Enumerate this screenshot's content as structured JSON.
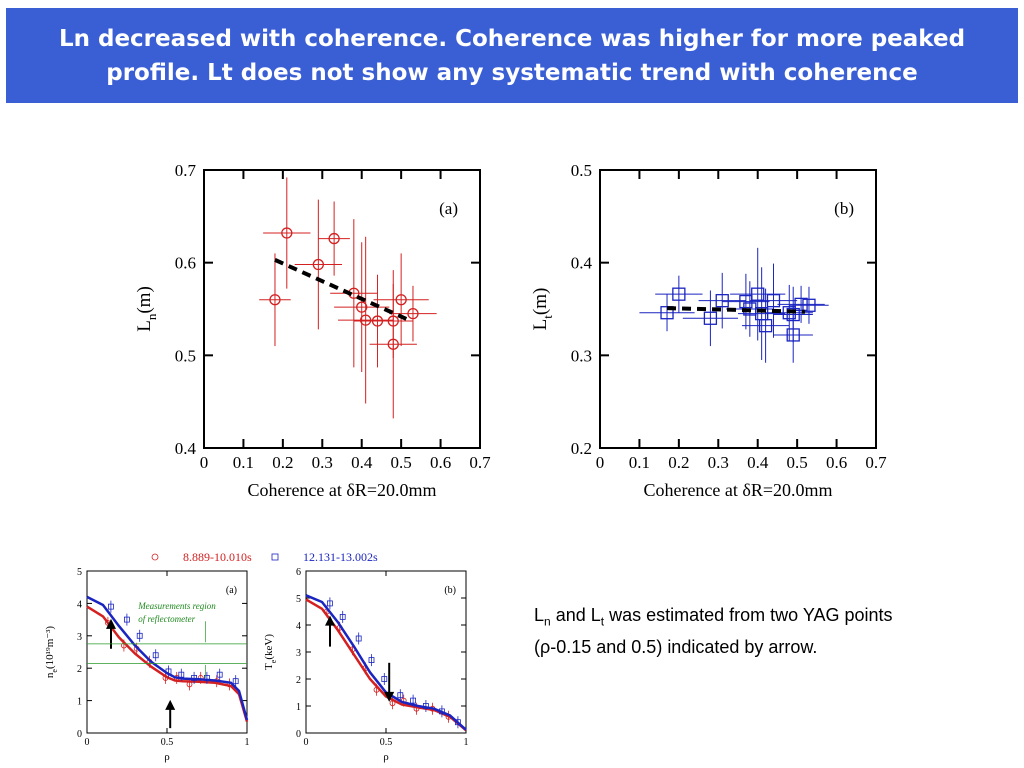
{
  "header": {
    "title": "Ln decreased with coherence. Coherence was higher for more peaked profile. Lt does not show any systematic trend with coherence"
  },
  "chart_data": [
    {
      "id": "ln",
      "type": "scatter",
      "panel_label": "(a)",
      "xlabel": "Coherence at δR=20.0mm",
      "ylabel_main": "L",
      "ylabel_sub": "n",
      "ylabel_unit": "(m)",
      "xlim": [
        0,
        0.7
      ],
      "ylim": [
        0.4,
        0.7
      ],
      "xticks": [
        "0",
        "0.1",
        "0.2",
        "0.3",
        "0.4",
        "0.5",
        "0.6",
        "0.7"
      ],
      "yticks": [
        "0.4",
        "0.5",
        "0.6",
        "0.7"
      ],
      "color": "#d42020",
      "marker": "circle",
      "points": [
        {
          "x": 0.18,
          "y": 0.56,
          "ex": 0.04,
          "ey": 0.05
        },
        {
          "x": 0.21,
          "y": 0.632,
          "ex": 0.06,
          "ey": 0.06
        },
        {
          "x": 0.29,
          "y": 0.598,
          "ex": 0.06,
          "ey": 0.07
        },
        {
          "x": 0.33,
          "y": 0.626,
          "ex": 0.04,
          "ey": 0.04
        },
        {
          "x": 0.38,
          "y": 0.567,
          "ex": 0.06,
          "ey": 0.08
        },
        {
          "x": 0.4,
          "y": 0.552,
          "ex": 0.07,
          "ey": 0.07
        },
        {
          "x": 0.41,
          "y": 0.538,
          "ex": 0.07,
          "ey": 0.09
        },
        {
          "x": 0.44,
          "y": 0.537,
          "ex": 0.06,
          "ey": 0.05
        },
        {
          "x": 0.48,
          "y": 0.537,
          "ex": 0.05,
          "ey": 0.04
        },
        {
          "x": 0.48,
          "y": 0.512,
          "ex": 0.06,
          "ey": 0.08
        },
        {
          "x": 0.5,
          "y": 0.56,
          "ex": 0.07,
          "ey": 0.05
        },
        {
          "x": 0.53,
          "y": 0.545,
          "ex": 0.06,
          "ey": 0.03
        }
      ],
      "fit": {
        "x": [
          0.18,
          0.52
        ],
        "y": [
          0.603,
          0.538
        ]
      }
    },
    {
      "id": "lt",
      "type": "scatter",
      "panel_label": "(b)",
      "xlabel": "Coherence at δR=20.0mm",
      "ylabel_main": "L",
      "ylabel_sub": "t",
      "ylabel_unit": "(m)",
      "xlim": [
        0,
        0.7
      ],
      "ylim": [
        0.2,
        0.5
      ],
      "xticks": [
        "0",
        "0.1",
        "0.2",
        "0.3",
        "0.4",
        "0.5",
        "0.6",
        "0.7"
      ],
      "yticks": [
        "0.2",
        "0.3",
        "0.4",
        "0.5"
      ],
      "color": "#1a24c0",
      "marker": "square",
      "points": [
        {
          "x": 0.17,
          "y": 0.346,
          "ex": 0.07,
          "ey": 0.02
        },
        {
          "x": 0.2,
          "y": 0.366,
          "ex": 0.06,
          "ey": 0.02
        },
        {
          "x": 0.28,
          "y": 0.34,
          "ex": 0.07,
          "ey": 0.03
        },
        {
          "x": 0.31,
          "y": 0.359,
          "ex": 0.06,
          "ey": 0.03
        },
        {
          "x": 0.37,
          "y": 0.358,
          "ex": 0.06,
          "ey": 0.03
        },
        {
          "x": 0.38,
          "y": 0.35,
          "ex": 0.06,
          "ey": 0.03
        },
        {
          "x": 0.4,
          "y": 0.366,
          "ex": 0.07,
          "ey": 0.05
        },
        {
          "x": 0.41,
          "y": 0.345,
          "ex": 0.06,
          "ey": 0.05
        },
        {
          "x": 0.42,
          "y": 0.332,
          "ex": 0.06,
          "ey": 0.04
        },
        {
          "x": 0.44,
          "y": 0.359,
          "ex": 0.06,
          "ey": 0.04
        },
        {
          "x": 0.48,
          "y": 0.346,
          "ex": 0.06,
          "ey": 0.03
        },
        {
          "x": 0.49,
          "y": 0.322,
          "ex": 0.05,
          "ey": 0.03
        },
        {
          "x": 0.49,
          "y": 0.344,
          "ex": 0.05,
          "ey": 0.03
        },
        {
          "x": 0.51,
          "y": 0.355,
          "ex": 0.06,
          "ey": 0.02
        },
        {
          "x": 0.53,
          "y": 0.354,
          "ex": 0.05,
          "ey": 0.02
        }
      ],
      "fit": {
        "x": [
          0.17,
          0.52
        ],
        "y": [
          0.351,
          0.347
        ]
      }
    },
    {
      "id": "ne",
      "type": "line",
      "panel_label": "(a)",
      "xlabel": "ρ",
      "ylabel_main": "n",
      "ylabel_sub": "e",
      "ylabel_unit": "(10¹⁹m⁻³)",
      "xlim": [
        0,
        1
      ],
      "ylim": [
        0,
        5
      ],
      "xticks": [
        "0",
        "0.5",
        "1"
      ],
      "yticks": [
        "0",
        "1",
        "2",
        "3",
        "4",
        "5"
      ],
      "annotation": [
        "Measurements region",
        "of reflectometer"
      ],
      "arrows_rho": [
        0.15,
        0.52
      ],
      "series": [
        {
          "name": "8.889-10.010s",
          "color": "#d42020",
          "marker": "circle",
          "x": [
            0,
            0.1,
            0.2,
            0.3,
            0.4,
            0.5,
            0.55,
            0.6,
            0.7,
            0.8,
            0.9,
            0.95,
            1.0
          ],
          "y": [
            3.9,
            3.6,
            2.95,
            2.45,
            2.05,
            1.72,
            1.62,
            1.6,
            1.58,
            1.55,
            1.45,
            1.2,
            0.35
          ],
          "px": [
            0.14,
            0.24,
            0.32,
            0.4,
            0.5,
            0.57,
            0.65,
            0.72,
            0.82,
            0.9
          ],
          "py": [
            3.4,
            2.7,
            2.6,
            2.2,
            1.7,
            1.7,
            1.5,
            1.7,
            1.6,
            1.5
          ]
        },
        {
          "name": "12.131-13.002s",
          "color": "#1a24c0",
          "marker": "square",
          "x": [
            0,
            0.1,
            0.2,
            0.3,
            0.4,
            0.5,
            0.55,
            0.6,
            0.7,
            0.8,
            0.9,
            0.95,
            1.0
          ],
          "y": [
            4.2,
            3.95,
            3.3,
            2.7,
            2.2,
            1.85,
            1.72,
            1.68,
            1.66,
            1.62,
            1.55,
            1.3,
            0.4
          ],
          "px": [
            0.14,
            0.24,
            0.32,
            0.42,
            0.5,
            0.58,
            0.66,
            0.74,
            0.82,
            0.92
          ],
          "py": [
            3.9,
            3.5,
            3.0,
            2.4,
            1.9,
            1.8,
            1.7,
            1.7,
            1.8,
            1.6
          ]
        }
      ]
    },
    {
      "id": "te",
      "type": "line",
      "panel_label": "(b)",
      "xlabel": "ρ",
      "ylabel_main": "T",
      "ylabel_sub": "e",
      "ylabel_unit": "(keV)",
      "xlim": [
        0,
        1
      ],
      "ylim": [
        0,
        6
      ],
      "xticks": [
        "0",
        "0.5",
        "1"
      ],
      "yticks": [
        "0",
        "1",
        "2",
        "3",
        "4",
        "5",
        "6"
      ],
      "arrows_rho": [
        0.15,
        0.52
      ],
      "series": [
        {
          "name": "8.889-10.010s",
          "color": "#d42020",
          "marker": "circle",
          "x": [
            0,
            0.1,
            0.2,
            0.3,
            0.4,
            0.5,
            0.6,
            0.7,
            0.8,
            0.9,
            1.0
          ],
          "y": [
            4.95,
            4.6,
            3.8,
            2.9,
            2.0,
            1.35,
            1.05,
            0.95,
            0.85,
            0.6,
            0.1
          ],
          "px": [
            0.14,
            0.22,
            0.3,
            0.38,
            0.45,
            0.55,
            0.62,
            0.7,
            0.8,
            0.9
          ],
          "py": [
            4.5,
            3.9,
            3.1,
            2.4,
            1.6,
            1.1,
            1.2,
            0.9,
            0.9,
            0.6
          ]
        },
        {
          "name": "12.131-13.002s",
          "color": "#1a24c0",
          "marker": "square",
          "x": [
            0,
            0.1,
            0.2,
            0.3,
            0.4,
            0.5,
            0.6,
            0.7,
            0.8,
            0.9,
            1.0
          ],
          "y": [
            5.1,
            4.85,
            4.1,
            3.2,
            2.25,
            1.5,
            1.15,
            1.0,
            0.9,
            0.65,
            0.12
          ],
          "px": [
            0.14,
            0.22,
            0.32,
            0.4,
            0.48,
            0.58,
            0.66,
            0.74,
            0.84,
            0.94
          ],
          "py": [
            4.8,
            4.3,
            3.5,
            2.7,
            2.0,
            1.4,
            1.2,
            1.0,
            0.8,
            0.4
          ]
        }
      ]
    }
  ],
  "note": {
    "text_1": "L",
    "sub_1": "n",
    "text_2": " and L",
    "sub_2": "t",
    "text_3": " was estimated from two YAG points (ρ-0.15 and 0.5) indicated by arrow."
  }
}
